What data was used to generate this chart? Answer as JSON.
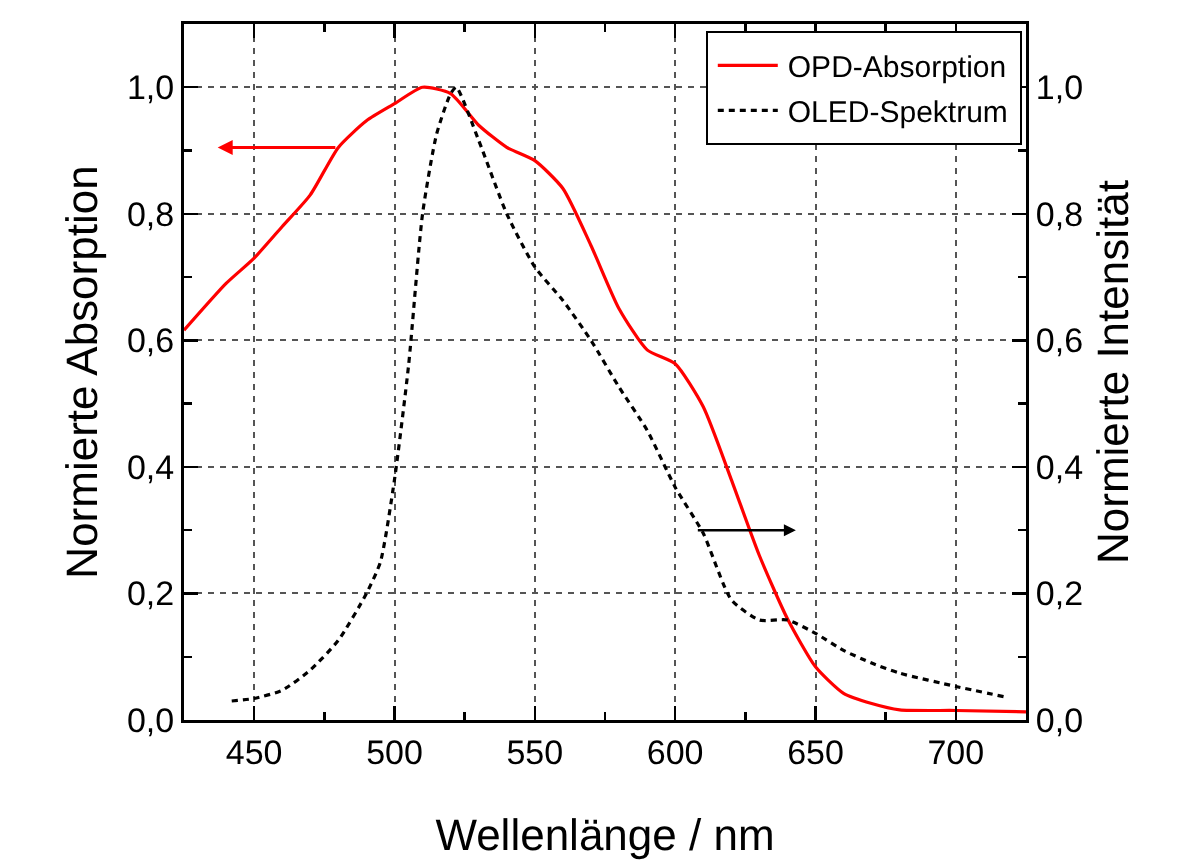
{
  "chart_data": {
    "type": "line",
    "xlabel": "Wellenlänge / nm",
    "ylabel": "Normierte Absorption",
    "y2label": "Normierte Intensität",
    "xlim": [
      425,
      725
    ],
    "xticks": [
      450,
      500,
      550,
      600,
      650,
      700
    ],
    "ylim": [
      0,
      1.1
    ],
    "yticks": [
      {
        "value": 0,
        "label": "0,0"
      },
      {
        "value": 0.2,
        "label": "0,2"
      },
      {
        "value": 0.4,
        "label": "0,4"
      },
      {
        "value": 0.6,
        "label": "0,6"
      },
      {
        "value": 0.8,
        "label": "0,8"
      },
      {
        "value": 1,
        "label": "1,0"
      }
    ],
    "y2lim": [
      0,
      1.1
    ],
    "y2ticks": [
      {
        "value": 0,
        "label": "0,0"
      },
      {
        "value": 0.2,
        "label": "0,2"
      },
      {
        "value": 0.4,
        "label": "0,4"
      },
      {
        "value": 0.6,
        "label": "0,6"
      },
      {
        "value": 0.8,
        "label": "0,8"
      },
      {
        "value": 1,
        "label": "1,0"
      }
    ],
    "grid": true,
    "legend": "top right",
    "series": [
      {
        "name": "OPD-Absorption",
        "color": "#ff0000",
        "line_style": "solid",
        "x": [
          425,
          440,
          450,
          460,
          470,
          480,
          490,
          500,
          510,
          520,
          530,
          540,
          550,
          560,
          570,
          580,
          590,
          600,
          610,
          620,
          630,
          640,
          650,
          660,
          670,
          680,
          700,
          725
        ],
        "values": [
          0.616,
          0.69,
          0.73,
          0.78,
          0.83,
          0.905,
          0.947,
          0.974,
          1.0,
          0.99,
          0.94,
          0.905,
          0.884,
          0.84,
          0.75,
          0.65,
          0.585,
          0.563,
          0.495,
          0.38,
          0.26,
          0.16,
          0.084,
          0.042,
          0.026,
          0.016,
          0.015,
          0.013
        ]
      },
      {
        "name": "OLED-Spektrum",
        "color": "#000000",
        "line_style": "dashed",
        "axis": "y2",
        "x": [
          442,
          450,
          460,
          470,
          480,
          490,
          495,
          500,
          505,
          510,
          515,
          520,
          522,
          530,
          540,
          550,
          560,
          570,
          580,
          590,
          600,
          610,
          620,
          630,
          640,
          650,
          660,
          670,
          680,
          700,
          717
        ],
        "values": [
          0.03,
          0.034,
          0.047,
          0.079,
          0.126,
          0.2,
          0.25,
          0.38,
          0.56,
          0.8,
          0.926,
          0.99,
          1.0,
          0.916,
          0.8,
          0.716,
          0.663,
          0.6,
          0.526,
          0.458,
          0.368,
          0.295,
          0.19,
          0.158,
          0.158,
          0.137,
          0.11,
          0.09,
          0.074,
          0.053,
          0.037
        ]
      }
    ]
  }
}
